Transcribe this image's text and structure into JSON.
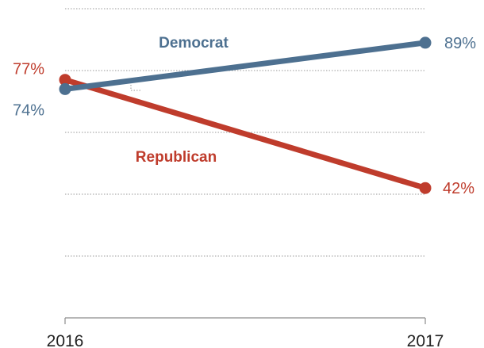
{
  "chart_data": {
    "type": "line",
    "x": [
      "2016",
      "2017"
    ],
    "ylim": [
      0,
      100
    ],
    "grid": true,
    "series": [
      {
        "name": "Democrat",
        "values": [
          74,
          89
        ],
        "color": "#4d7090",
        "value_labels": [
          "74%",
          "89%"
        ]
      },
      {
        "name": "Republican",
        "values": [
          77,
          42
        ],
        "color": "#bf3c2c",
        "value_labels": [
          "77%",
          "42%"
        ]
      }
    ]
  }
}
